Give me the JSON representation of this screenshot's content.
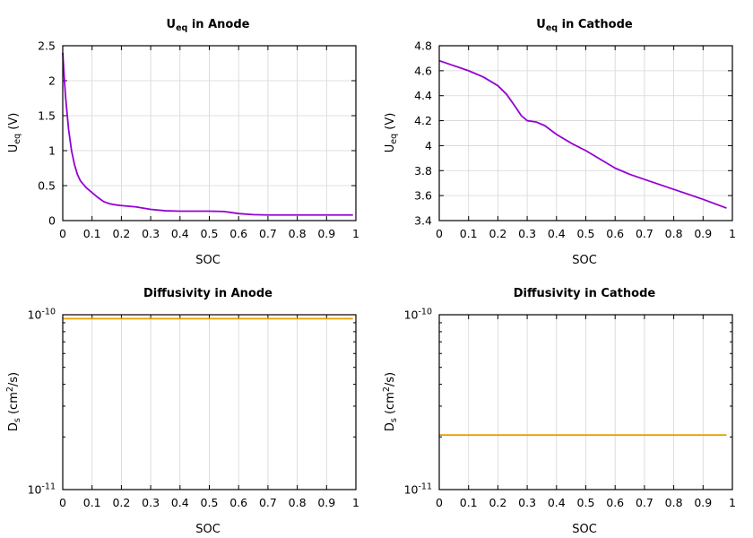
{
  "chart_data": [
    {
      "type": "line",
      "title_main": "U",
      "title_sub": "eq",
      "title_rest": " in Anode",
      "xlabel": "SOC",
      "ylabel_main": "U",
      "ylabel_sub": "eq",
      "ylabel_rest": " (V)",
      "xlim": [
        0,
        1
      ],
      "ylim": [
        0,
        2.5
      ],
      "xticks": [
        "0",
        "0.1",
        "0.2",
        "0.3",
        "0.4",
        "0.5",
        "0.6",
        "0.7",
        "0.8",
        "0.9",
        "1"
      ],
      "yticks": [
        {
          "v": 0,
          "label": "0"
        },
        {
          "v": 0.5,
          "label": "0.5"
        },
        {
          "v": 1,
          "label": "1"
        },
        {
          "v": 1.5,
          "label": "1.5"
        },
        {
          "v": 2,
          "label": "2"
        },
        {
          "v": 2.5,
          "label": "2.5"
        }
      ],
      "yscale": "linear",
      "grid": true,
      "color": "#9400d3",
      "series": [
        {
          "x": [
            0,
            0.005,
            0.01,
            0.02,
            0.03,
            0.04,
            0.05,
            0.06,
            0.08,
            0.1,
            0.12,
            0.14,
            0.16,
            0.18,
            0.2,
            0.25,
            0.3,
            0.35,
            0.4,
            0.45,
            0.5,
            0.55,
            0.6,
            0.65,
            0.7,
            0.8,
            0.9,
            0.99
          ],
          "y": [
            2.4,
            2.05,
            1.75,
            1.3,
            1.0,
            0.8,
            0.66,
            0.57,
            0.47,
            0.4,
            0.33,
            0.27,
            0.24,
            0.225,
            0.215,
            0.195,
            0.16,
            0.14,
            0.135,
            0.135,
            0.135,
            0.13,
            0.1,
            0.085,
            0.08,
            0.08,
            0.08,
            0.08
          ]
        }
      ]
    },
    {
      "type": "line",
      "title_main": "U",
      "title_sub": "eq",
      "title_rest": " in Cathode",
      "xlabel": "SOC",
      "ylabel_main": "U",
      "ylabel_sub": "eq",
      "ylabel_rest": " (V)",
      "xlim": [
        0,
        1
      ],
      "ylim": [
        3.4,
        4.8
      ],
      "xticks": [
        "0",
        "0.1",
        "0.2",
        "0.3",
        "0.4",
        "0.5",
        "0.6",
        "0.7",
        "0.8",
        "0.9",
        "1"
      ],
      "yticks": [
        {
          "v": 3.4,
          "label": "3.4"
        },
        {
          "v": 3.6,
          "label": "3.6"
        },
        {
          "v": 3.8,
          "label": "3.8"
        },
        {
          "v": 4.0,
          "label": "4"
        },
        {
          "v": 4.2,
          "label": "4.2"
        },
        {
          "v": 4.4,
          "label": "4.4"
        },
        {
          "v": 4.6,
          "label": "4.6"
        },
        {
          "v": 4.8,
          "label": "4.8"
        }
      ],
      "yscale": "linear",
      "grid": true,
      "color": "#9400d3",
      "series": [
        {
          "x": [
            0,
            0.05,
            0.1,
            0.15,
            0.2,
            0.23,
            0.26,
            0.28,
            0.3,
            0.33,
            0.36,
            0.4,
            0.45,
            0.5,
            0.55,
            0.6,
            0.65,
            0.7,
            0.8,
            0.9,
            0.98
          ],
          "y": [
            4.68,
            4.64,
            4.6,
            4.55,
            4.48,
            4.41,
            4.31,
            4.24,
            4.2,
            4.19,
            4.16,
            4.09,
            4.02,
            3.96,
            3.89,
            3.82,
            3.77,
            3.73,
            3.65,
            3.57,
            3.5
          ]
        }
      ]
    },
    {
      "type": "line",
      "title_main": "Diffusivity in Anode",
      "xlabel": "SOC",
      "ylabel_a": "D",
      "ylabel_sub": "s",
      "ylabel_b": " (cm",
      "ylabel_sup": "2",
      "ylabel_c": "/s)",
      "xlim": [
        0,
        1
      ],
      "ylim": [
        1e-11,
        1e-10
      ],
      "xticks": [
        "0",
        "0.1",
        "0.2",
        "0.3",
        "0.4",
        "0.5",
        "0.6",
        "0.7",
        "0.8",
        "0.9",
        "1"
      ],
      "yticks": [
        {
          "v": 1e-10,
          "base": "10",
          "exp": "-10"
        },
        {
          "v": 1e-11,
          "base": "10",
          "exp": "-11"
        }
      ],
      "yscale": "log",
      "grid": true,
      "color": "#e69f00",
      "series": [
        {
          "x": [
            0,
            0.99
          ],
          "y": [
            9.5e-11,
            9.5e-11
          ]
        }
      ]
    },
    {
      "type": "line",
      "title_main": "Diffusivity in Cathode",
      "xlabel": "SOC",
      "ylabel_a": "D",
      "ylabel_sub": "s",
      "ylabel_b": " (cm",
      "ylabel_sup": "2",
      "ylabel_c": "/s)",
      "xlim": [
        0,
        1
      ],
      "ylim": [
        1e-11,
        1e-10
      ],
      "xticks": [
        "0",
        "0.1",
        "0.2",
        "0.3",
        "0.4",
        "0.5",
        "0.6",
        "0.7",
        "0.8",
        "0.9",
        "1"
      ],
      "yticks": [
        {
          "v": 1e-10,
          "base": "10",
          "exp": "-10"
        },
        {
          "v": 1e-11,
          "base": "10",
          "exp": "-11"
        }
      ],
      "yscale": "log",
      "grid": true,
      "color": "#e69f00",
      "series": [
        {
          "x": [
            0,
            0.98
          ],
          "y": [
            2.05e-11,
            2.05e-11
          ]
        }
      ]
    }
  ]
}
